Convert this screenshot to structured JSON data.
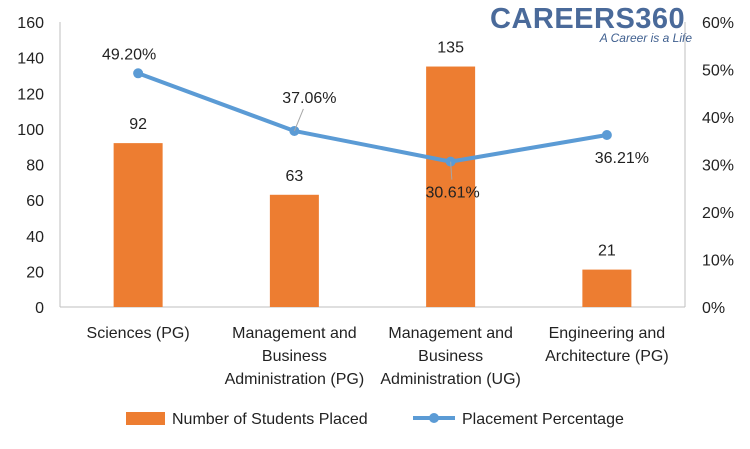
{
  "logo": {
    "name": "CAREERS360",
    "tagline": "A Career is a Life"
  },
  "colors": {
    "bar": "#ED7D31",
    "line": "#5B9BD5",
    "axis": "#bfbfbf"
  },
  "chart_data": {
    "type": "bar",
    "categories": [
      [
        "Sciences (PG)"
      ],
      [
        "Management and",
        "Business",
        "Administration (PG)"
      ],
      [
        "Management and",
        "Business",
        "Administration (UG)"
      ],
      [
        "Engineering and",
        "Architecture (PG)"
      ]
    ],
    "series": [
      {
        "name": "Number of Students Placed",
        "type": "bar",
        "axis": "left",
        "values": [
          92,
          63,
          135,
          21
        ],
        "labels": [
          "92",
          "63",
          "135",
          "21"
        ]
      },
      {
        "name": "Placement Percentage",
        "type": "line",
        "axis": "right",
        "values": [
          49.2,
          37.06,
          30.61,
          36.21
        ],
        "labels": [
          "49.20%",
          "37.06%",
          "30.61%",
          "36.21%"
        ]
      }
    ],
    "ylim": [
      0,
      160
    ],
    "yticks": [
      "0",
      "20",
      "40",
      "60",
      "80",
      "100",
      "120",
      "140",
      "160"
    ],
    "y2lim": [
      0,
      60
    ],
    "y2ticks": [
      "0%",
      "10%",
      "20%",
      "30%",
      "40%",
      "50%",
      "60%"
    ],
    "legend_position": "bottom",
    "grid": false
  }
}
